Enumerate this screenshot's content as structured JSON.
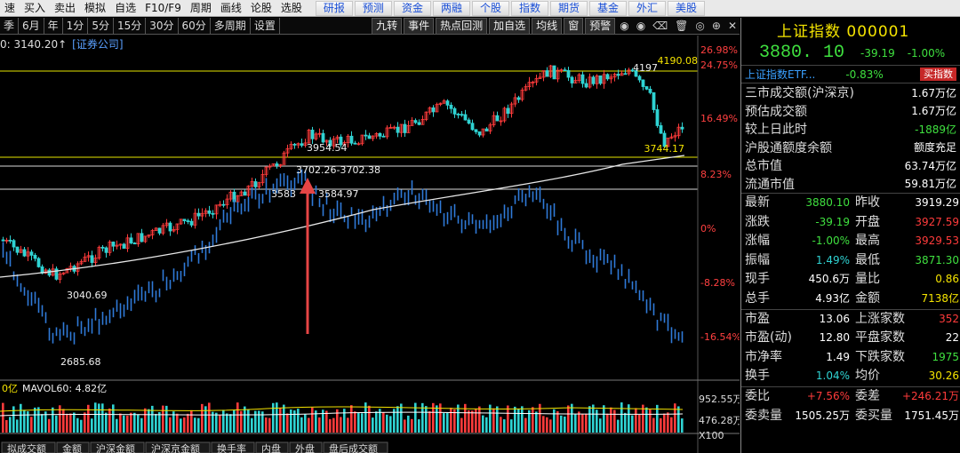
{
  "menu": {
    "left": [
      "速",
      "买入",
      "卖出",
      "模拟",
      "自选",
      "F10/F9",
      "周期",
      "画线",
      "论股",
      "选股"
    ],
    "right": [
      "研报",
      "预测",
      "资金",
      "两融",
      "个股",
      "指数",
      "期货",
      "基金",
      "外汇",
      "美股"
    ]
  },
  "toolbar": {
    "periods": [
      "季",
      "6月",
      "年",
      "1分",
      "5分",
      "15分",
      "30分",
      "60分",
      "多周期",
      "设置"
    ],
    "buttons": [
      "九转",
      "事件",
      "热点回测",
      "加自选",
      "均线",
      "窗",
      "预警"
    ],
    "icons": [
      "eye-icon",
      "eye-icon",
      "clear-icon",
      "delete-icon",
      "circle-icon",
      "add-icon",
      "close-icon"
    ]
  },
  "info_line": {
    "text": "0: 3140.20↑",
    "tag": "[证券公司]"
  },
  "chart": {
    "right_axis": [
      "26.98%",
      "24.75%",
      "16.49%",
      "8.23%",
      "0%",
      "-8.28%",
      "-16.54%"
    ],
    "annotations": {
      "peak": "4190.08",
      "peak_line": "4197",
      "support": "3744.17",
      "mid_high": "3954.54",
      "range": "3702.26-3702.38",
      "left_mark": "3583",
      "right_mark": "3584.97",
      "low1": "3040.69",
      "low2": "2685.68"
    },
    "volume_label": "0亿",
    "mavol": "MAVOL60: 4.82亿",
    "volume_axis": [
      "952.55万",
      "476.28万",
      "X100"
    ],
    "bottom_tabs": [
      "拟成交额",
      "金额",
      "沪深金额",
      "沪深京金额",
      "换手率",
      "内盘",
      "外盘",
      "盘后成交额"
    ]
  },
  "panel": {
    "title": "上证指数 000001",
    "price": "3880. 10",
    "change": "-39.19",
    "change_pct": "-1.00%",
    "etf_name": "上证指数ETF...",
    "etf_pct": "-0.83%",
    "buy_label": "买指数",
    "stats": [
      {
        "k": "三市成交额(沪深京)",
        "v": "1.67万亿",
        "c": "white"
      },
      {
        "k": "预估成交额",
        "v": "1.67万亿",
        "c": "white"
      },
      {
        "k": "较上日此时",
        "v": "-1889亿",
        "c": "green"
      },
      {
        "k": "沪股通额度余额",
        "v": "额度充足",
        "c": "white"
      },
      {
        "k": "总市值",
        "v": "63.74万亿",
        "c": "white"
      },
      {
        "k": "流通市值",
        "v": "59.81万亿",
        "c": "white"
      }
    ],
    "quote": [
      [
        "最新",
        "3880.10",
        "green",
        "昨收",
        "3919.29",
        "white"
      ],
      [
        "涨跌",
        "-39.19",
        "green",
        "开盘",
        "3927.59",
        "red"
      ],
      [
        "涨幅",
        "-1.00%",
        "green",
        "最高",
        "3929.53",
        "red"
      ],
      [
        "振幅",
        "1.49%",
        "cyan",
        "最低",
        "3871.30",
        "green"
      ],
      [
        "现手",
        "450.6万",
        "white",
        "量比",
        "0.86",
        "yellow"
      ],
      [
        "总手",
        "4.93亿",
        "white",
        "金额",
        "7138亿",
        "yellow"
      ]
    ],
    "valuation": [
      [
        "市盈",
        "13.06",
        "white",
        "上涨家数",
        "352",
        "red"
      ],
      [
        "市盈(动)",
        "12.80",
        "white",
        "平盘家数",
        "22",
        "white"
      ],
      [
        "市净率",
        "1.49",
        "white",
        "下跌家数",
        "1975",
        "green"
      ],
      [
        "换手",
        "1.04%",
        "cyan",
        "均价",
        "30.26",
        "yellow"
      ]
    ],
    "bid_ask": [
      [
        "委比",
        "+7.56%",
        "red",
        "委差",
        "+246.21万",
        "red"
      ],
      [
        "委卖量",
        "1505.25万",
        "white",
        "委买量",
        "1751.45万",
        "white"
      ]
    ]
  },
  "colors": {
    "up": "#ff3b3b",
    "down": "#2fd3d3",
    "ma": "#e8e8e8",
    "hline": "#e6e600"
  }
}
